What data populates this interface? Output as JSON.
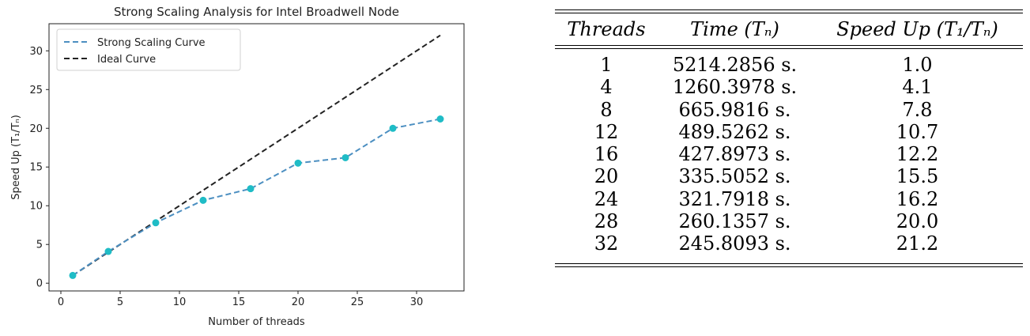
{
  "chart_data": {
    "type": "line",
    "title": "Strong Scaling Analysis for Intel Broadwell Node",
    "xlabel": "Number of threads",
    "ylabel": "Speed Up (T₁/Tₙ)",
    "xlim": [
      -1,
      34
    ],
    "ylim": [
      -1,
      33.5
    ],
    "xticks": [
      0,
      5,
      10,
      15,
      20,
      25,
      30
    ],
    "yticks": [
      0,
      5,
      10,
      15,
      20,
      25,
      30
    ],
    "grid": false,
    "legend_position": "top-left",
    "series": [
      {
        "name": "Strong Scaling Curve",
        "style": "dashed",
        "color": "#4c8fc1",
        "marker_color": "#1fbcc6",
        "x": [
          1,
          4,
          8,
          12,
          16,
          20,
          24,
          28,
          32
        ],
        "y": [
          1.0,
          4.1,
          7.8,
          10.7,
          12.2,
          15.5,
          16.2,
          20.0,
          21.2
        ]
      },
      {
        "name": "Ideal Curve",
        "style": "dashed",
        "color": "#222222",
        "x": [
          1,
          32
        ],
        "y": [
          1,
          32
        ]
      }
    ]
  },
  "table": {
    "headers": [
      "Threads",
      "Time (Tₙ)",
      "Speed Up (T₁/Tₙ)"
    ],
    "rows": [
      [
        "1",
        "5214.2856 s.",
        "1.0"
      ],
      [
        "4",
        "1260.3978 s.",
        "4.1"
      ],
      [
        "8",
        "665.9816 s.",
        "7.8"
      ],
      [
        "12",
        "489.5262 s.",
        "10.7"
      ],
      [
        "16",
        "427.8973 s.",
        "12.2"
      ],
      [
        "20",
        "335.5052 s.",
        "15.5"
      ],
      [
        "24",
        "321.7918 s.",
        "16.2"
      ],
      [
        "28",
        "260.1357 s.",
        "20.0"
      ],
      [
        "32",
        "245.8093 s.",
        "21.2"
      ]
    ]
  }
}
